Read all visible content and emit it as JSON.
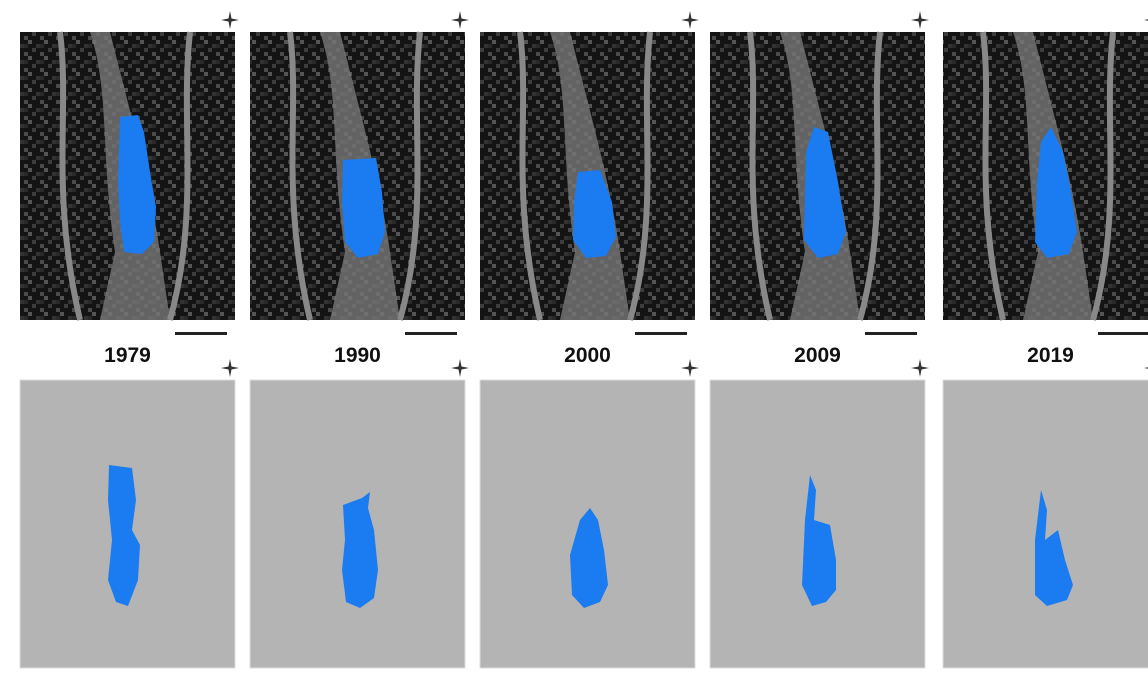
{
  "panels": [
    {
      "year": "1979"
    },
    {
      "year": "1990"
    },
    {
      "year": "2000"
    },
    {
      "year": "2009"
    },
    {
      "year": "2019"
    }
  ]
}
